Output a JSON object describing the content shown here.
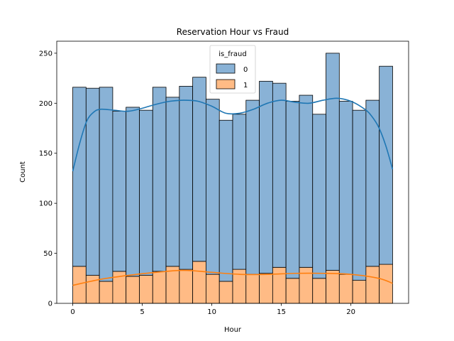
{
  "chart_data": {
    "type": "bar",
    "subtype": "stacked-histogram",
    "title": "Reservation Hour vs Fraud",
    "xlabel": "Hour",
    "ylabel": "Count",
    "xlim": [
      -1.15,
      24.15
    ],
    "ylim": [
      0,
      262
    ],
    "xticks": [
      0,
      5,
      10,
      15,
      20
    ],
    "yticks": [
      0,
      50,
      100,
      150,
      200,
      250
    ],
    "bins": [
      [
        0.0,
        0.958
      ],
      [
        0.958,
        1.917
      ],
      [
        1.917,
        2.875
      ],
      [
        2.875,
        3.833
      ],
      [
        3.833,
        4.792
      ],
      [
        4.792,
        5.75
      ],
      [
        5.75,
        6.708
      ],
      [
        6.708,
        7.667
      ],
      [
        7.667,
        8.625
      ],
      [
        8.625,
        9.583
      ],
      [
        9.583,
        10.542
      ],
      [
        10.542,
        11.5
      ],
      [
        11.5,
        12.458
      ],
      [
        12.458,
        13.417
      ],
      [
        13.417,
        14.375
      ],
      [
        14.375,
        15.333
      ],
      [
        15.333,
        16.292
      ],
      [
        16.292,
        17.25
      ],
      [
        17.25,
        18.208
      ],
      [
        18.208,
        19.167
      ],
      [
        19.167,
        20.125
      ],
      [
        20.125,
        21.083
      ],
      [
        21.083,
        22.042
      ],
      [
        22.042,
        23.0
      ]
    ],
    "series": [
      {
        "name": "1",
        "color": "#ffbb85",
        "line_color": "#ff7f0e",
        "values": [
          37,
          28,
          22,
          32,
          27,
          28,
          32,
          37,
          34,
          42,
          29,
          22,
          34,
          29,
          30,
          36,
          25,
          36,
          25,
          33,
          29,
          23,
          37,
          39
        ],
        "kde": {
          "x": [
            0,
            2,
            4,
            6,
            8,
            10,
            12,
            14,
            16,
            18,
            20,
            22,
            23
          ],
          "y": [
            18,
            24,
            28,
            31,
            33,
            31,
            29,
            29,
            30,
            30,
            29,
            25,
            20
          ]
        }
      },
      {
        "name": "0",
        "color": "#89b2d6",
        "line_color": "#1f77b4",
        "values": [
          179,
          187,
          194,
          160,
          169,
          165,
          184,
          169,
          183,
          184,
          175,
          161,
          155,
          174,
          192,
          184,
          177,
          172,
          164,
          217,
          173,
          170,
          166,
          198
        ],
        "kde": {
          "x": [
            0,
            0.5,
            1,
            1.5,
            2,
            3,
            4,
            5,
            6,
            7,
            8,
            9,
            10,
            11,
            12,
            13,
            14,
            15,
            16,
            17,
            18,
            19,
            20,
            21,
            21.5,
            22,
            22.5,
            23
          ],
          "y": [
            132,
            160,
            182,
            191,
            194,
            193,
            192,
            195,
            199,
            202,
            203,
            202,
            197,
            190,
            190,
            194,
            200,
            203,
            201,
            200,
            203,
            205,
            202,
            194,
            187,
            176,
            158,
            134
          ]
        }
      }
    ],
    "legend": {
      "title": "is_fraud",
      "entries": [
        "0",
        "1"
      ],
      "placement": "top-center"
    },
    "grid": false
  }
}
